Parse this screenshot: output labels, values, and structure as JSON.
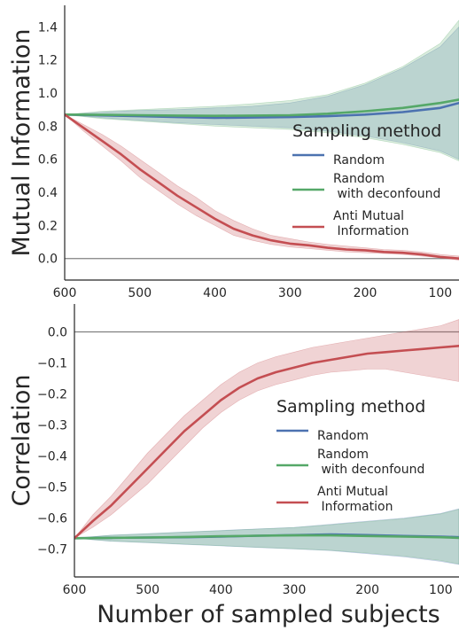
{
  "colors": {
    "random": "#4c72b0",
    "deconfound": "#55a868",
    "anti_mi": "#c44e52",
    "zero_line": "#808080"
  },
  "chart_data": [
    {
      "type": "line",
      "xlabel": "",
      "ylabel": "Mutual Information",
      "xlim": [
        600,
        75
      ],
      "x_reversed": true,
      "ylim": [
        -0.13,
        1.53
      ],
      "xticks": [
        600,
        500,
        400,
        300,
        200,
        100
      ],
      "yticks": [
        0.0,
        0.2,
        0.4,
        0.6,
        0.8,
        1.0,
        1.2,
        1.4
      ],
      "ytick_labels": [
        "0.0",
        "0.2",
        "0.4",
        "0.6",
        "0.8",
        "1.0",
        "1.2",
        "1.4"
      ],
      "reference_line": 0.0,
      "legend": {
        "title": "Sampling method",
        "position": "right",
        "entries": [
          "Random",
          "Random\n with deconfound",
          "Anti Mutual\n Information"
        ]
      },
      "series": [
        {
          "name": "Random",
          "color_key": "random",
          "x": [
            600,
            550,
            500,
            450,
            400,
            350,
            300,
            250,
            200,
            150,
            100,
            75
          ],
          "y": [
            0.87,
            0.865,
            0.86,
            0.855,
            0.85,
            0.852,
            0.855,
            0.86,
            0.87,
            0.885,
            0.91,
            0.94
          ],
          "band_low": [
            0.87,
            0.85,
            0.835,
            0.82,
            0.81,
            0.8,
            0.79,
            0.77,
            0.74,
            0.7,
            0.65,
            0.6
          ],
          "band_high": [
            0.87,
            0.885,
            0.895,
            0.9,
            0.91,
            0.92,
            0.94,
            0.98,
            1.05,
            1.15,
            1.28,
            1.4
          ]
        },
        {
          "name": "Random\n with deconfound",
          "color_key": "deconfound",
          "x": [
            600,
            550,
            500,
            450,
            400,
            350,
            300,
            250,
            200,
            150,
            100,
            75
          ],
          "y": [
            0.87,
            0.868,
            0.866,
            0.864,
            0.862,
            0.864,
            0.866,
            0.875,
            0.89,
            0.91,
            0.94,
            0.96
          ],
          "band_low": [
            0.87,
            0.845,
            0.83,
            0.815,
            0.8,
            0.79,
            0.78,
            0.76,
            0.73,
            0.69,
            0.64,
            0.59
          ],
          "band_high": [
            0.87,
            0.89,
            0.9,
            0.91,
            0.92,
            0.935,
            0.955,
            0.99,
            1.06,
            1.16,
            1.3,
            1.44
          ]
        },
        {
          "name": "Anti Mutual\n Information",
          "color_key": "anti_mi",
          "x": [
            600,
            575,
            550,
            525,
            500,
            475,
            450,
            425,
            400,
            375,
            350,
            325,
            300,
            275,
            250,
            225,
            200,
            175,
            150,
            125,
            100,
            75
          ],
          "y": [
            0.87,
            0.79,
            0.71,
            0.63,
            0.54,
            0.46,
            0.38,
            0.31,
            0.24,
            0.18,
            0.14,
            0.11,
            0.09,
            0.08,
            0.065,
            0.055,
            0.05,
            0.04,
            0.035,
            0.025,
            0.01,
            0.0
          ],
          "band_low": [
            0.87,
            0.77,
            0.68,
            0.59,
            0.49,
            0.41,
            0.33,
            0.26,
            0.2,
            0.14,
            0.11,
            0.085,
            0.07,
            0.06,
            0.05,
            0.04,
            0.035,
            0.03,
            0.025,
            0.015,
            0.005,
            -0.01
          ],
          "band_high": [
            0.87,
            0.81,
            0.75,
            0.68,
            0.6,
            0.52,
            0.44,
            0.37,
            0.29,
            0.23,
            0.18,
            0.14,
            0.12,
            0.1,
            0.085,
            0.075,
            0.065,
            0.055,
            0.05,
            0.04,
            0.025,
            0.015
          ]
        }
      ]
    },
    {
      "type": "line",
      "xlabel": "Number of sampled subjects",
      "ylabel": "Correlation",
      "xlim": [
        600,
        75
      ],
      "x_reversed": true,
      "ylim": [
        -0.79,
        0.09
      ],
      "xticks": [
        600,
        500,
        400,
        300,
        200,
        100
      ],
      "yticks": [
        0.0,
        -0.1,
        -0.2,
        -0.3,
        -0.4,
        -0.5,
        -0.6,
        -0.7
      ],
      "ytick_labels": [
        "0.0",
        "−0.1",
        "−0.2",
        "−0.3",
        "−0.4",
        "−0.5",
        "−0.6",
        "−0.7"
      ],
      "reference_line": 0.0,
      "legend": {
        "title": "Sampling method",
        "position": "right",
        "entries": [
          "Random",
          "Random\n with deconfound",
          "Anti Mutual\n Information"
        ]
      },
      "series": [
        {
          "name": "Random",
          "color_key": "random",
          "x": [
            600,
            550,
            500,
            450,
            400,
            350,
            300,
            250,
            200,
            150,
            100,
            75
          ],
          "y": [
            -0.665,
            -0.664,
            -0.663,
            -0.662,
            -0.66,
            -0.657,
            -0.655,
            -0.653,
            -0.655,
            -0.658,
            -0.66,
            -0.662
          ],
          "band_low": [
            -0.665,
            -0.675,
            -0.68,
            -0.685,
            -0.69,
            -0.695,
            -0.7,
            -0.705,
            -0.715,
            -0.725,
            -0.74,
            -0.75
          ],
          "band_high": [
            -0.665,
            -0.655,
            -0.65,
            -0.645,
            -0.64,
            -0.635,
            -0.63,
            -0.62,
            -0.61,
            -0.6,
            -0.585,
            -0.57
          ]
        },
        {
          "name": "Random\n with deconfound",
          "color_key": "deconfound",
          "x": [
            600,
            550,
            500,
            450,
            400,
            350,
            300,
            250,
            200,
            150,
            100,
            75
          ],
          "y": [
            -0.665,
            -0.664,
            -0.663,
            -0.661,
            -0.659,
            -0.657,
            -0.656,
            -0.656,
            -0.658,
            -0.66,
            -0.662,
            -0.664
          ],
          "band_low": [
            -0.665,
            -0.674,
            -0.679,
            -0.684,
            -0.689,
            -0.694,
            -0.699,
            -0.704,
            -0.713,
            -0.723,
            -0.737,
            -0.748
          ],
          "band_high": [
            -0.665,
            -0.656,
            -0.651,
            -0.646,
            -0.641,
            -0.636,
            -0.631,
            -0.622,
            -0.612,
            -0.602,
            -0.587,
            -0.572
          ]
        },
        {
          "name": "Anti Mutual\n Information",
          "color_key": "anti_mi",
          "x": [
            600,
            575,
            550,
            525,
            500,
            475,
            450,
            425,
            400,
            375,
            350,
            325,
            300,
            275,
            250,
            225,
            200,
            175,
            150,
            125,
            100,
            75
          ],
          "y": [
            -0.665,
            -0.61,
            -0.56,
            -0.5,
            -0.44,
            -0.38,
            -0.32,
            -0.27,
            -0.22,
            -0.18,
            -0.15,
            -0.13,
            -0.115,
            -0.1,
            -0.09,
            -0.08,
            -0.07,
            -0.065,
            -0.06,
            -0.055,
            -0.05,
            -0.045
          ],
          "band_low": [
            -0.665,
            -0.63,
            -0.59,
            -0.54,
            -0.49,
            -0.43,
            -0.37,
            -0.31,
            -0.26,
            -0.22,
            -0.19,
            -0.17,
            -0.155,
            -0.14,
            -0.13,
            -0.125,
            -0.12,
            -0.12,
            -0.13,
            -0.14,
            -0.15,
            -0.16
          ],
          "band_high": [
            -0.665,
            -0.59,
            -0.53,
            -0.46,
            -0.39,
            -0.33,
            -0.27,
            -0.22,
            -0.17,
            -0.13,
            -0.1,
            -0.08,
            -0.065,
            -0.05,
            -0.04,
            -0.03,
            -0.02,
            -0.01,
            0.0,
            0.01,
            0.02,
            0.04
          ]
        }
      ]
    }
  ]
}
